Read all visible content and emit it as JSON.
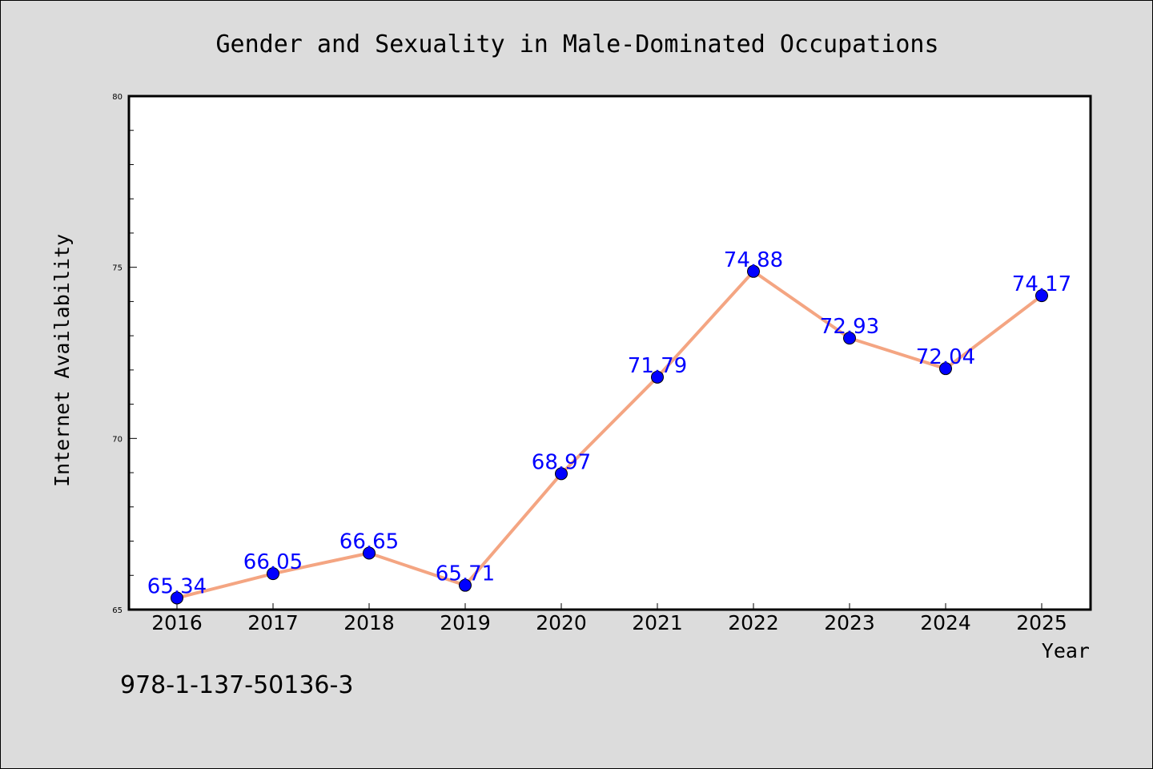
{
  "chart_data": {
    "type": "line",
    "title": "Gender and Sexuality in Male-Dominated Occupations",
    "xlabel": "Year",
    "ylabel": "Internet Availability",
    "x": [
      "2016",
      "2017",
      "2018",
      "2019",
      "2020",
      "2021",
      "2022",
      "2023",
      "2024",
      "2025"
    ],
    "series": [
      {
        "values": [
          65.34,
          66.05,
          66.65,
          65.71,
          68.97,
          71.79,
          74.88,
          72.93,
          72.04,
          74.17
        ],
        "labels": [
          "65.34",
          "66.05",
          "66.65",
          "65.71",
          "68.97",
          "71.79",
          "74.88",
          "72.93",
          "72.04",
          "74.17"
        ],
        "line_color": "#f4a582",
        "marker_color": "#0000ff"
      }
    ],
    "ylim": [
      65,
      80
    ],
    "yticks": [
      "65",
      "70",
      "75",
      "80"
    ],
    "yminor_step": 1,
    "grid": false,
    "legend": "none",
    "background": "#dcdcdc",
    "plot_background": "#ffffff"
  },
  "footer": {
    "text": "978-1-137-50136-3"
  }
}
